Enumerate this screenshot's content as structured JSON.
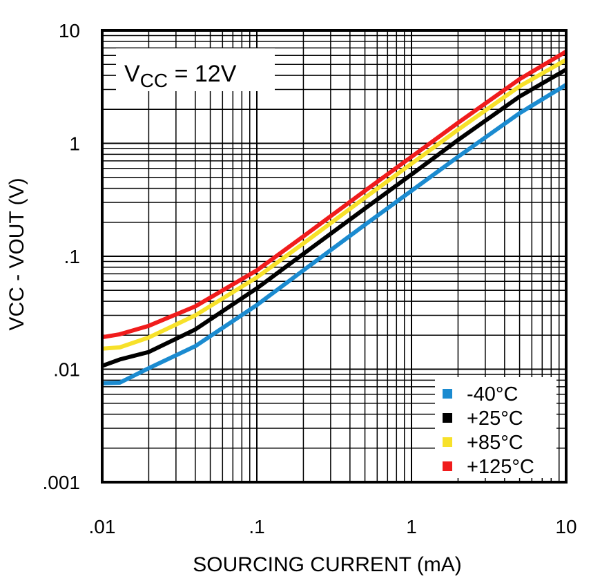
{
  "chart_data": {
    "type": "line",
    "xscale": "log",
    "yscale": "log",
    "xlabel": "SOURCING CURRENT (mA)",
    "ylabel": "VCC - VOUT (V)",
    "xlim": [
      0.01,
      10
    ],
    "ylim": [
      0.001,
      10
    ],
    "xticks": [
      {
        "value": 0.01,
        "label": ".01"
      },
      {
        "value": 0.1,
        "label": ".1"
      },
      {
        "value": 1,
        "label": "1"
      },
      {
        "value": 10,
        "label": "10"
      }
    ],
    "yticks": [
      {
        "value": 0.001,
        "label": ".001"
      },
      {
        "value": 0.01,
        "label": ".01"
      },
      {
        "value": 0.1,
        "label": ".1"
      },
      {
        "value": 1,
        "label": "1"
      },
      {
        "value": 10,
        "label": "10"
      }
    ],
    "grid": true,
    "annotation": {
      "main": "V",
      "sub": "CC",
      "rest": " = 12V"
    },
    "legend_position": "bottom-right",
    "series": [
      {
        "name": "-40°C",
        "color": "#1b8bd0",
        "x": [
          0.01,
          0.013,
          0.02,
          0.04,
          0.1,
          0.2,
          0.5,
          1,
          2,
          5,
          10
        ],
        "y": [
          0.0075,
          0.0076,
          0.0102,
          0.016,
          0.037,
          0.075,
          0.19,
          0.38,
          0.76,
          1.85,
          3.3
        ]
      },
      {
        "name": "+25°C",
        "color": "#000000",
        "x": [
          0.01,
          0.013,
          0.02,
          0.04,
          0.1,
          0.2,
          0.5,
          1,
          2,
          5,
          10
        ],
        "y": [
          0.0107,
          0.0122,
          0.0142,
          0.0225,
          0.052,
          0.105,
          0.265,
          0.53,
          1.07,
          2.6,
          4.5
        ]
      },
      {
        "name": "+85°C",
        "color": "#f7e12a",
        "x": [
          0.01,
          0.013,
          0.02,
          0.04,
          0.1,
          0.2,
          0.5,
          1,
          2,
          5,
          10
        ],
        "y": [
          0.0152,
          0.0156,
          0.0191,
          0.03,
          0.065,
          0.13,
          0.33,
          0.66,
          1.32,
          3.2,
          5.5
        ]
      },
      {
        "name": "+125°C",
        "color": "#f01c1c",
        "x": [
          0.01,
          0.013,
          0.02,
          0.04,
          0.1,
          0.2,
          0.5,
          1,
          2,
          5,
          10
        ],
        "y": [
          0.0192,
          0.0204,
          0.0242,
          0.036,
          0.075,
          0.15,
          0.38,
          0.76,
          1.52,
          3.7,
          6.5
        ]
      }
    ]
  }
}
